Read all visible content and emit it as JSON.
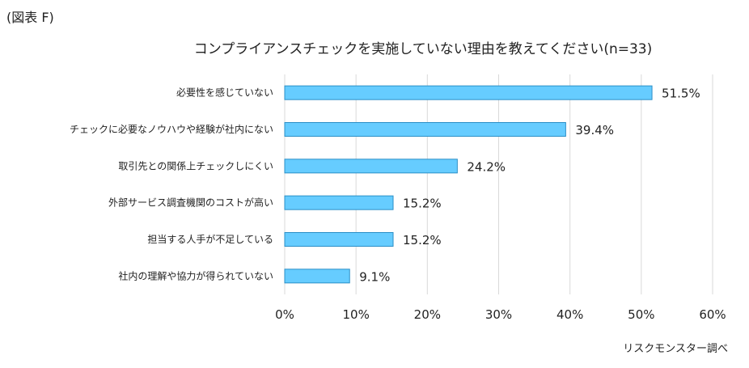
{
  "figure_label": "(図表 F)",
  "source_note": "リスクモンスター調べ",
  "chart_data": {
    "type": "bar",
    "orientation": "horizontal",
    "title": "コンプライアンスチェックを実施していない理由を教えてください(n=33)",
    "categories": [
      "必要性を感じていない",
      "チェックに必要なノウハウや経験が社内にない",
      "取引先との関係上チェックしにくい",
      "外部サービス調査機関のコストが高い",
      "担当する人手が不足している",
      "社内の理解や協力が得られていない"
    ],
    "values": [
      51.5,
      39.4,
      24.2,
      15.2,
      15.2,
      9.1
    ],
    "value_labels": [
      "51.5%",
      "39.4%",
      "24.2%",
      "15.2%",
      "15.2%",
      "9.1%"
    ],
    "xlim": [
      0,
      60
    ],
    "xticks": [
      "0%",
      "10%",
      "20%",
      "30%",
      "40%",
      "50%",
      "60%"
    ],
    "grid": true,
    "bar_color": "#66ccff",
    "bar_border_color": "#2b8fc7"
  }
}
